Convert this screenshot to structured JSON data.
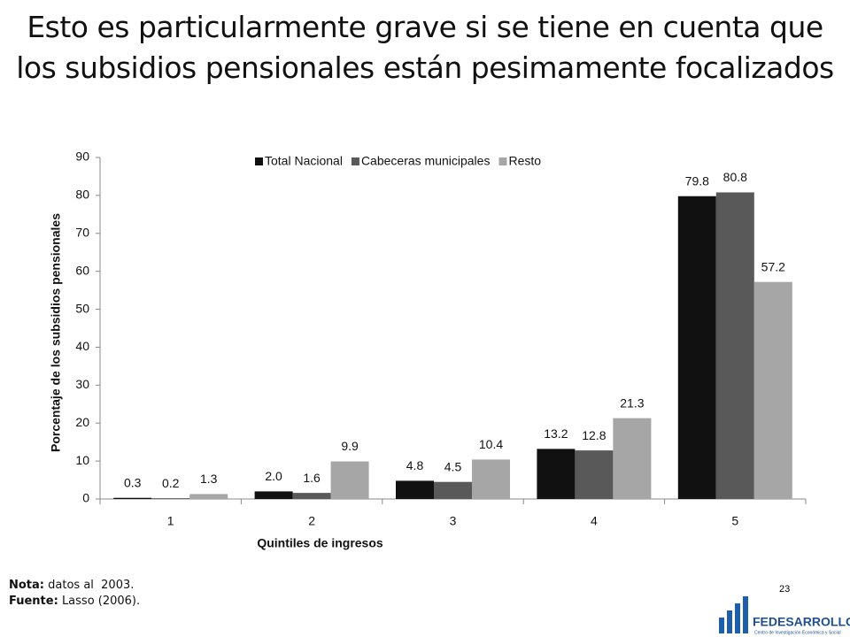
{
  "title": "Esto es particularmente grave si se tiene en cuenta que los subsidios pensionales están pesimamente focalizados",
  "chart_data": {
    "type": "bar",
    "categories": [
      "1",
      "2",
      "3",
      "4",
      "5"
    ],
    "x_label": "Quintiles de ingresos",
    "y_label": "Porcentaje de los subsidios pensionales",
    "ylim": [
      0,
      90
    ],
    "yticks": [
      0,
      10,
      20,
      30,
      40,
      50,
      60,
      70,
      80,
      90
    ],
    "legend": "top",
    "series": [
      {
        "name": "Total Nacional",
        "color": "#111111",
        "values": [
          0.3,
          2,
          4.8,
          13.2,
          79.8
        ],
        "value_labels": [
          "0.3",
          "2.0",
          "4.8",
          "13.2",
          "79.8"
        ]
      },
      {
        "name": "Cabeceras municipales",
        "color": "#595959",
        "values": [
          0.2,
          1.6,
          4.5,
          12.8,
          80.8
        ],
        "value_labels": [
          "0.2",
          "1.6",
          "4.5",
          "12.8",
          "80.8"
        ]
      },
      {
        "name": "Resto",
        "color": "#a6a6a6",
        "values": [
          1.3,
          9.9,
          10.4,
          21.3,
          57.2
        ],
        "value_labels": [
          "1.3",
          "9.9",
          "10.4",
          "21.3",
          "57.2"
        ]
      }
    ]
  },
  "notes": [
    {
      "label": "Nota:",
      "text": "datos al  2003."
    },
    {
      "label": "Fuente:",
      "text": "Lasso (2006)."
    }
  ],
  "page_number": "23",
  "logo": {
    "name": "FEDESARROLLO",
    "tagline": "Centro de Investigación Económica y Social"
  }
}
